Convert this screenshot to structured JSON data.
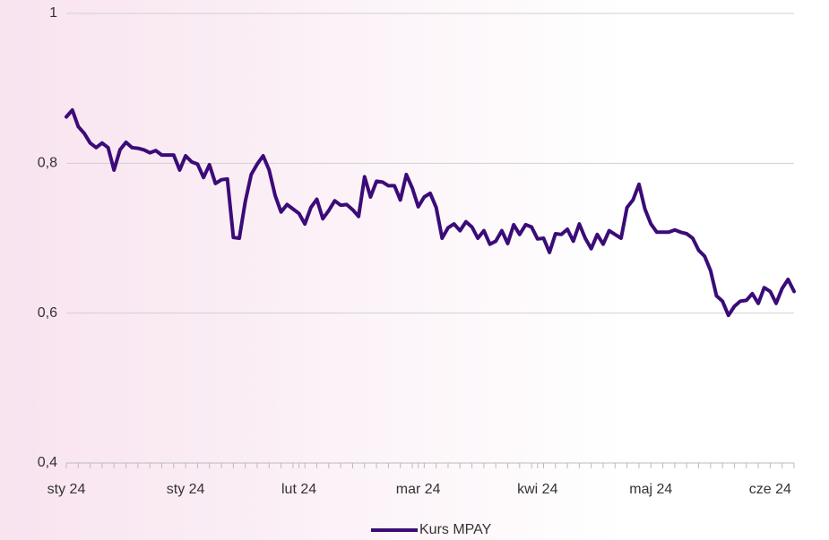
{
  "chart_data": {
    "type": "line",
    "categories": [
      "sty 24",
      null,
      null,
      null,
      null,
      null,
      null,
      null,
      null,
      null,
      null,
      null,
      null,
      null,
      null,
      null,
      null,
      null,
      null,
      null,
      "sty 24",
      null,
      null,
      null,
      null,
      null,
      null,
      null,
      null,
      null,
      null,
      null,
      null,
      null,
      null,
      null,
      null,
      null,
      null,
      "lut 24",
      null,
      null,
      null,
      null,
      null,
      null,
      null,
      null,
      null,
      null,
      null,
      null,
      null,
      null,
      null,
      null,
      null,
      null,
      null,
      "mar 24",
      null,
      null,
      null,
      null,
      null,
      null,
      null,
      null,
      null,
      null,
      null,
      null,
      null,
      null,
      null,
      null,
      null,
      null,
      null,
      "kwi 24",
      null,
      null,
      null,
      null,
      null,
      null,
      null,
      null,
      null,
      null,
      null,
      null,
      null,
      null,
      null,
      null,
      null,
      null,
      "maj 24",
      null,
      null,
      null,
      null,
      null,
      null,
      null,
      null,
      null,
      null,
      null,
      null,
      null,
      null,
      null,
      null,
      null,
      null,
      null,
      "cze 24",
      null,
      null,
      null,
      null
    ],
    "series": [
      {
        "name": "Kurs MPAY",
        "color": "#3b0c78",
        "values": [
          0.862,
          0.871,
          0.849,
          0.84,
          0.827,
          0.821,
          0.827,
          0.821,
          0.791,
          0.818,
          0.828,
          0.821,
          0.82,
          0.818,
          0.814,
          0.817,
          0.811,
          0.811,
          0.811,
          0.791,
          0.81,
          0.802,
          0.799,
          0.781,
          0.798,
          0.773,
          0.778,
          0.779,
          0.701,
          0.7,
          0.749,
          0.785,
          0.799,
          0.81,
          0.791,
          0.757,
          0.735,
          0.745,
          0.739,
          0.733,
          0.719,
          0.741,
          0.752,
          0.726,
          0.737,
          0.75,
          0.744,
          0.745,
          0.738,
          0.729,
          0.782,
          0.755,
          0.776,
          0.775,
          0.77,
          0.77,
          0.751,
          0.785,
          0.767,
          0.742,
          0.755,
          0.76,
          0.741,
          0.7,
          0.714,
          0.719,
          0.71,
          0.722,
          0.715,
          0.7,
          0.71,
          0.692,
          0.696,
          0.71,
          0.693,
          0.718,
          0.705,
          0.718,
          0.715,
          0.699,
          0.7,
          0.681,
          0.706,
          0.705,
          0.712,
          0.696,
          0.719,
          0.7,
          0.686,
          0.705,
          0.692,
          0.71,
          0.705,
          0.7,
          0.741,
          0.751,
          0.772,
          0.739,
          0.719,
          0.708,
          0.708,
          0.708,
          0.711,
          0.708,
          0.706,
          0.7,
          0.684,
          0.676,
          0.657,
          0.623,
          0.616,
          0.597,
          0.609,
          0.616,
          0.617,
          0.626,
          0.613,
          0.634,
          0.629,
          0.613,
          0.633,
          0.645,
          0.629
        ]
      }
    ],
    "ylim": [
      0.4,
      1
    ],
    "yticks": [
      {
        "value": 0.4,
        "label": "0,4"
      },
      {
        "value": 0.6,
        "label": "0,6"
      },
      {
        "value": 0.8,
        "label": "0,8"
      },
      1
    ],
    "grid": true,
    "legend": "bottom"
  }
}
